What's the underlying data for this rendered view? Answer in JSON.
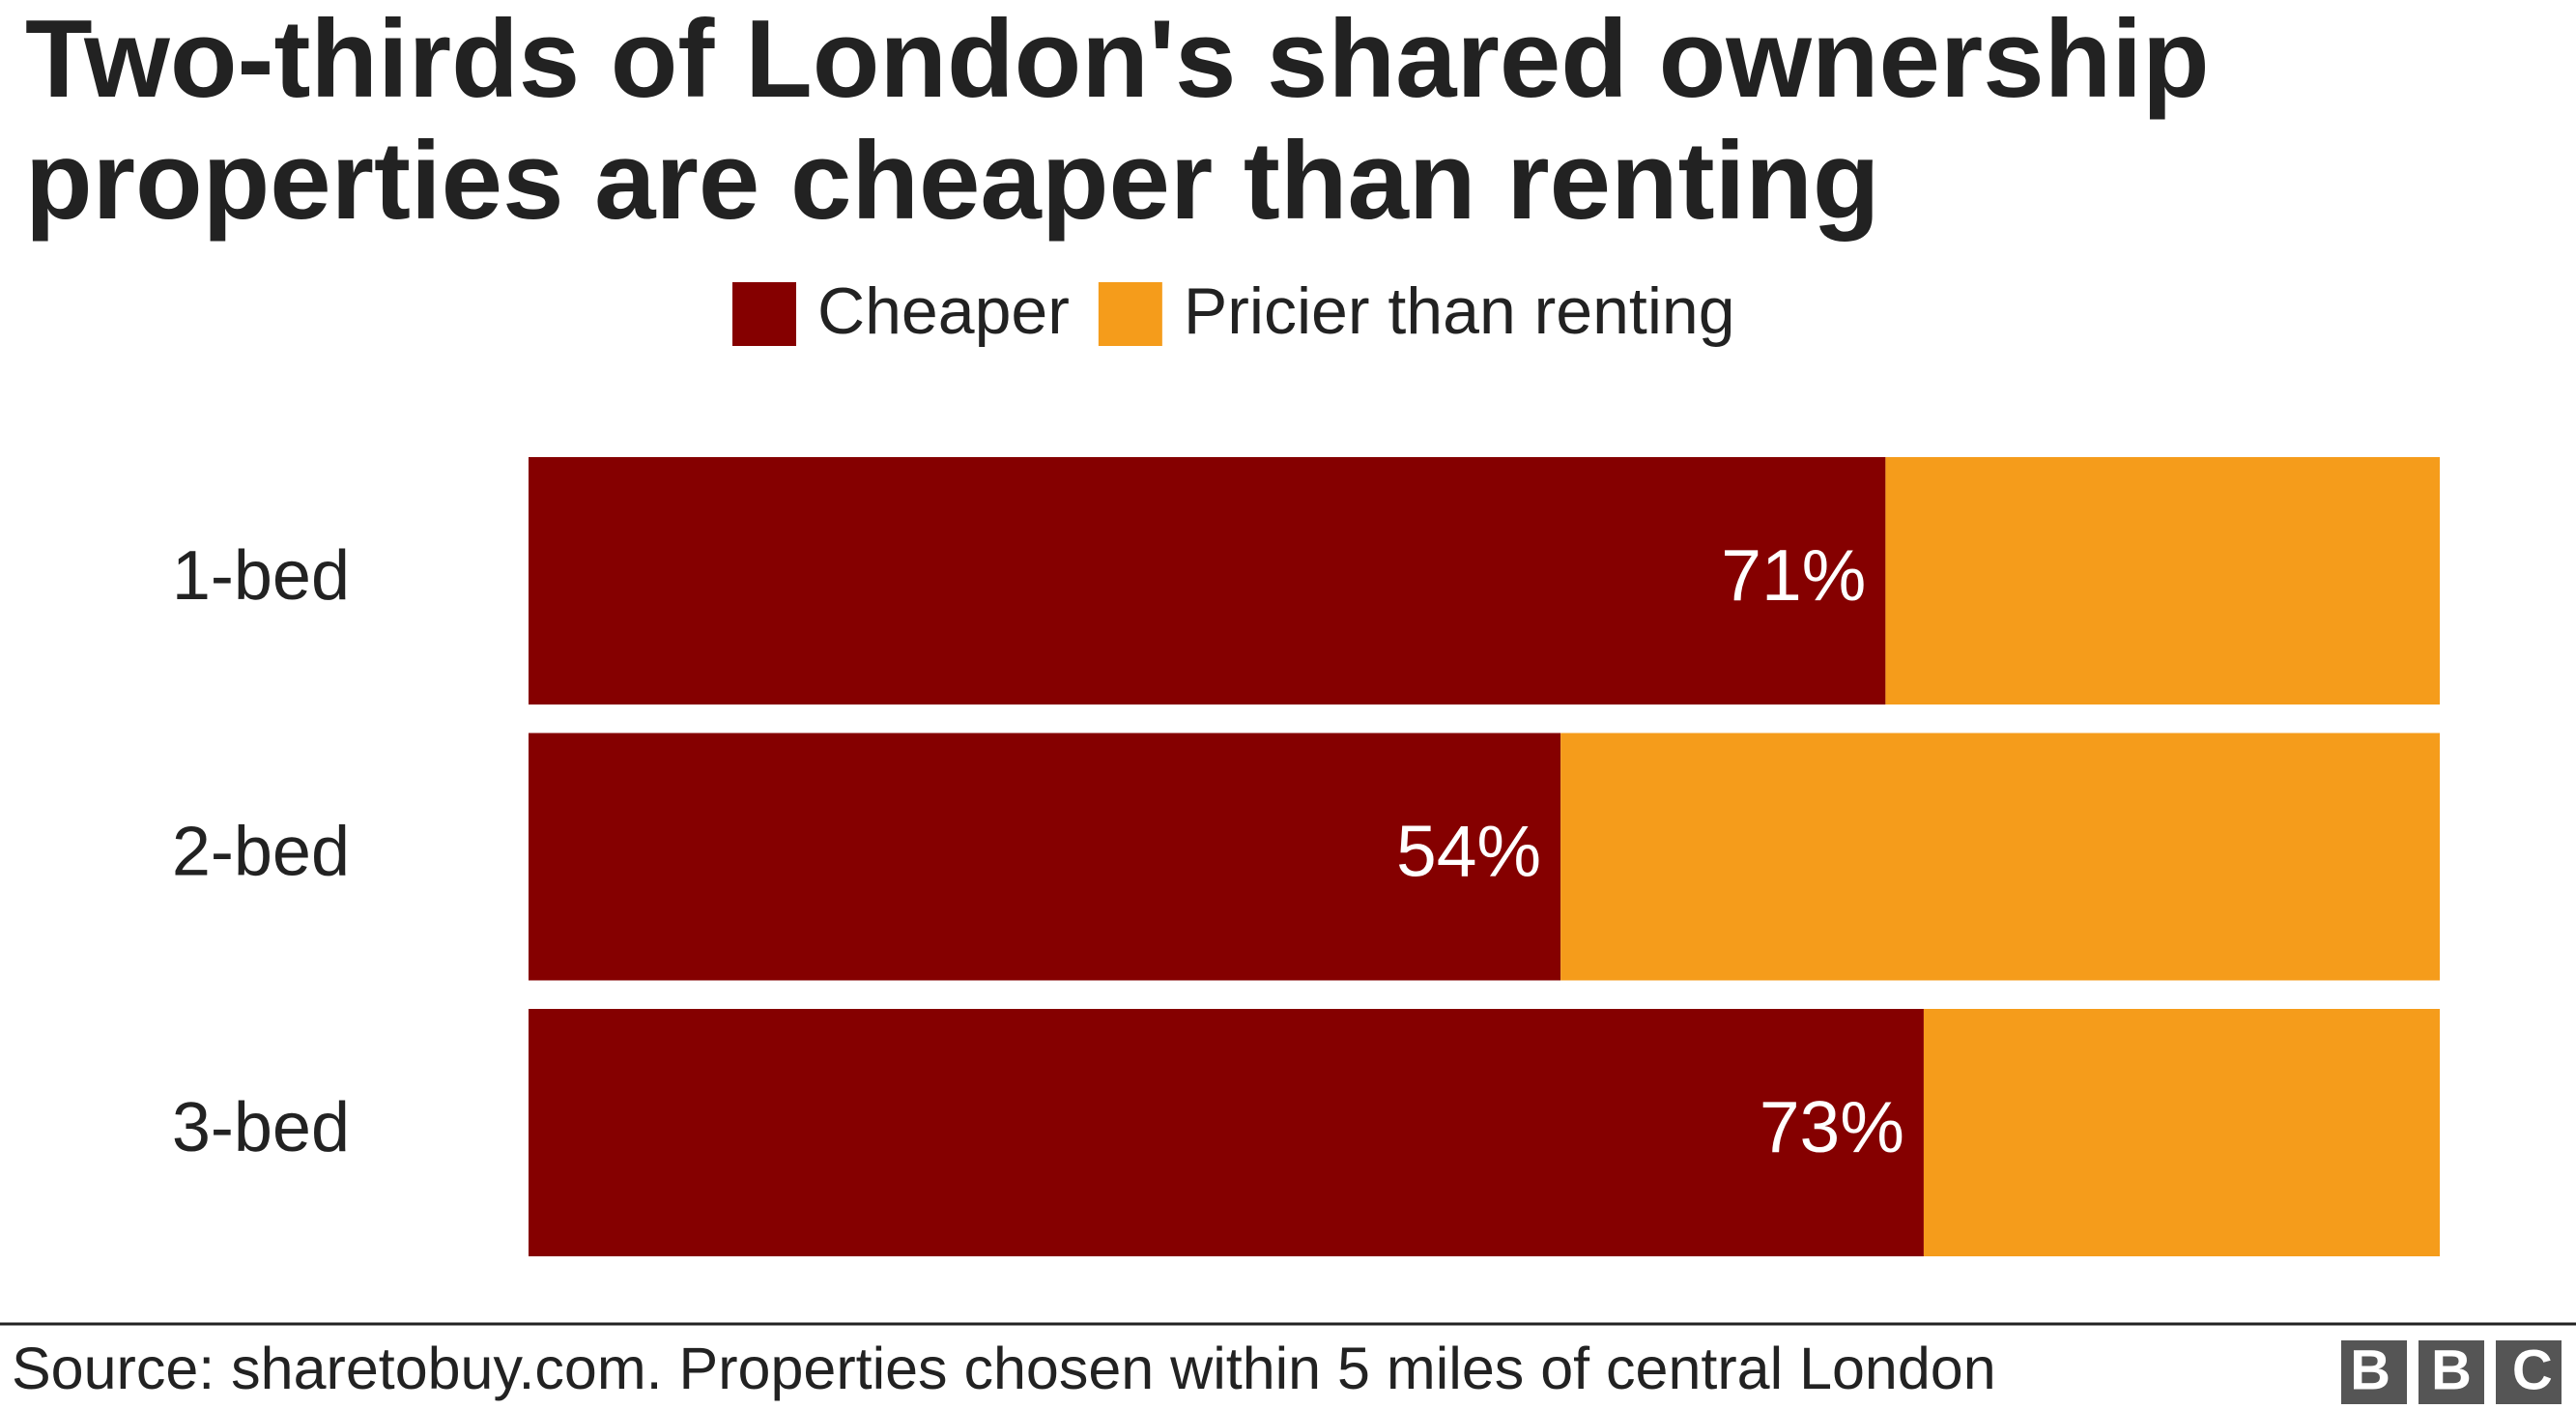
{
  "chart_data": {
    "type": "stacked_barh",
    "title": "Two-thirds of London's shared ownership properties are cheaper than renting",
    "title_lines": [
      "Two-thirds of London's shared ownership",
      "properties are cheaper than renting"
    ],
    "categories": [
      "1-bed",
      "2-bed",
      "3-bed"
    ],
    "series": [
      {
        "name": "Cheaper",
        "color": "#850000",
        "values": [
          71,
          54,
          73
        ],
        "value_labels": [
          "71%",
          "54%",
          "73%"
        ]
      },
      {
        "name": "Pricier than renting",
        "color": "#f59c1b",
        "values": [
          29,
          46,
          27
        ]
      }
    ],
    "xlim": [
      0,
      100
    ],
    "legend": "top",
    "source": "Source: sharetobuy.com. Properties chosen within 5 miles of central London",
    "logo": "BBC"
  }
}
